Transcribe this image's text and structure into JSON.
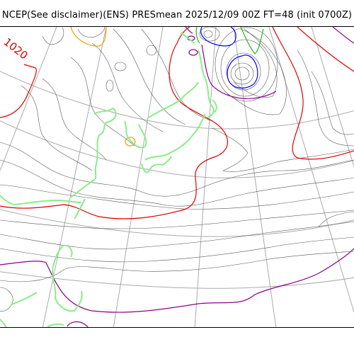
{
  "title": "NCEP(See disclaimer)(ENS) PRESmean 2025/12/09 00Z FT=48 (init 0700Z)",
  "map": {
    "isobar_label": "1020",
    "colors": {
      "isobar_1020": "#e00000",
      "isobar_purple": "#8b008b",
      "isobar_blue": "#0000ff",
      "isobar_green": "#22bb22",
      "isobar_orange": "#f0a000",
      "thin_isobar": "#555555",
      "graticule": "#aaaaaa",
      "coastline": "#88ee88"
    }
  }
}
